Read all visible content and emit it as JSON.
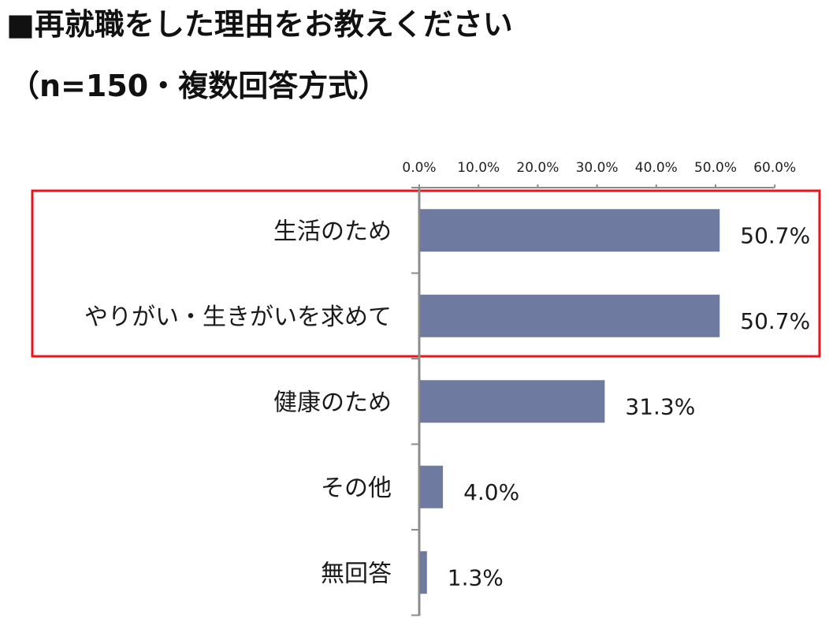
{
  "header": {
    "title": "■再就職をした理由をお教えください",
    "subtitle": "（n=150・複数回答方式）"
  },
  "colors": {
    "bar": "#6e7a9f",
    "axis": "#8c8c8c",
    "highlight_box": "#e8151b",
    "text": "#1a1a1a"
  },
  "chart_data": {
    "type": "bar",
    "orientation": "horizontal",
    "title": "■再就職をした理由をお教えください",
    "subtitle": "（n=150・複数回答方式）",
    "categories": [
      "生活のため",
      "やりがい・生きがいを求めて",
      "健康のため",
      "その他",
      "無回答"
    ],
    "values": [
      50.7,
      50.7,
      31.3,
      4.0,
      1.3
    ],
    "data_labels": [
      "50.7%",
      "50.7%",
      "31.3%",
      "4.0%",
      "1.3%"
    ],
    "x_ticks": [
      "0.0%",
      "10.0%",
      "20.0%",
      "30.0%",
      "40.0%",
      "50.0%",
      "60.0%"
    ],
    "xlim": [
      0,
      60
    ],
    "x_axis_position": "top",
    "grid": false,
    "legend": "none",
    "highlighted_categories": [
      "生活のため",
      "やりがい・生きがいを求めて"
    ]
  }
}
